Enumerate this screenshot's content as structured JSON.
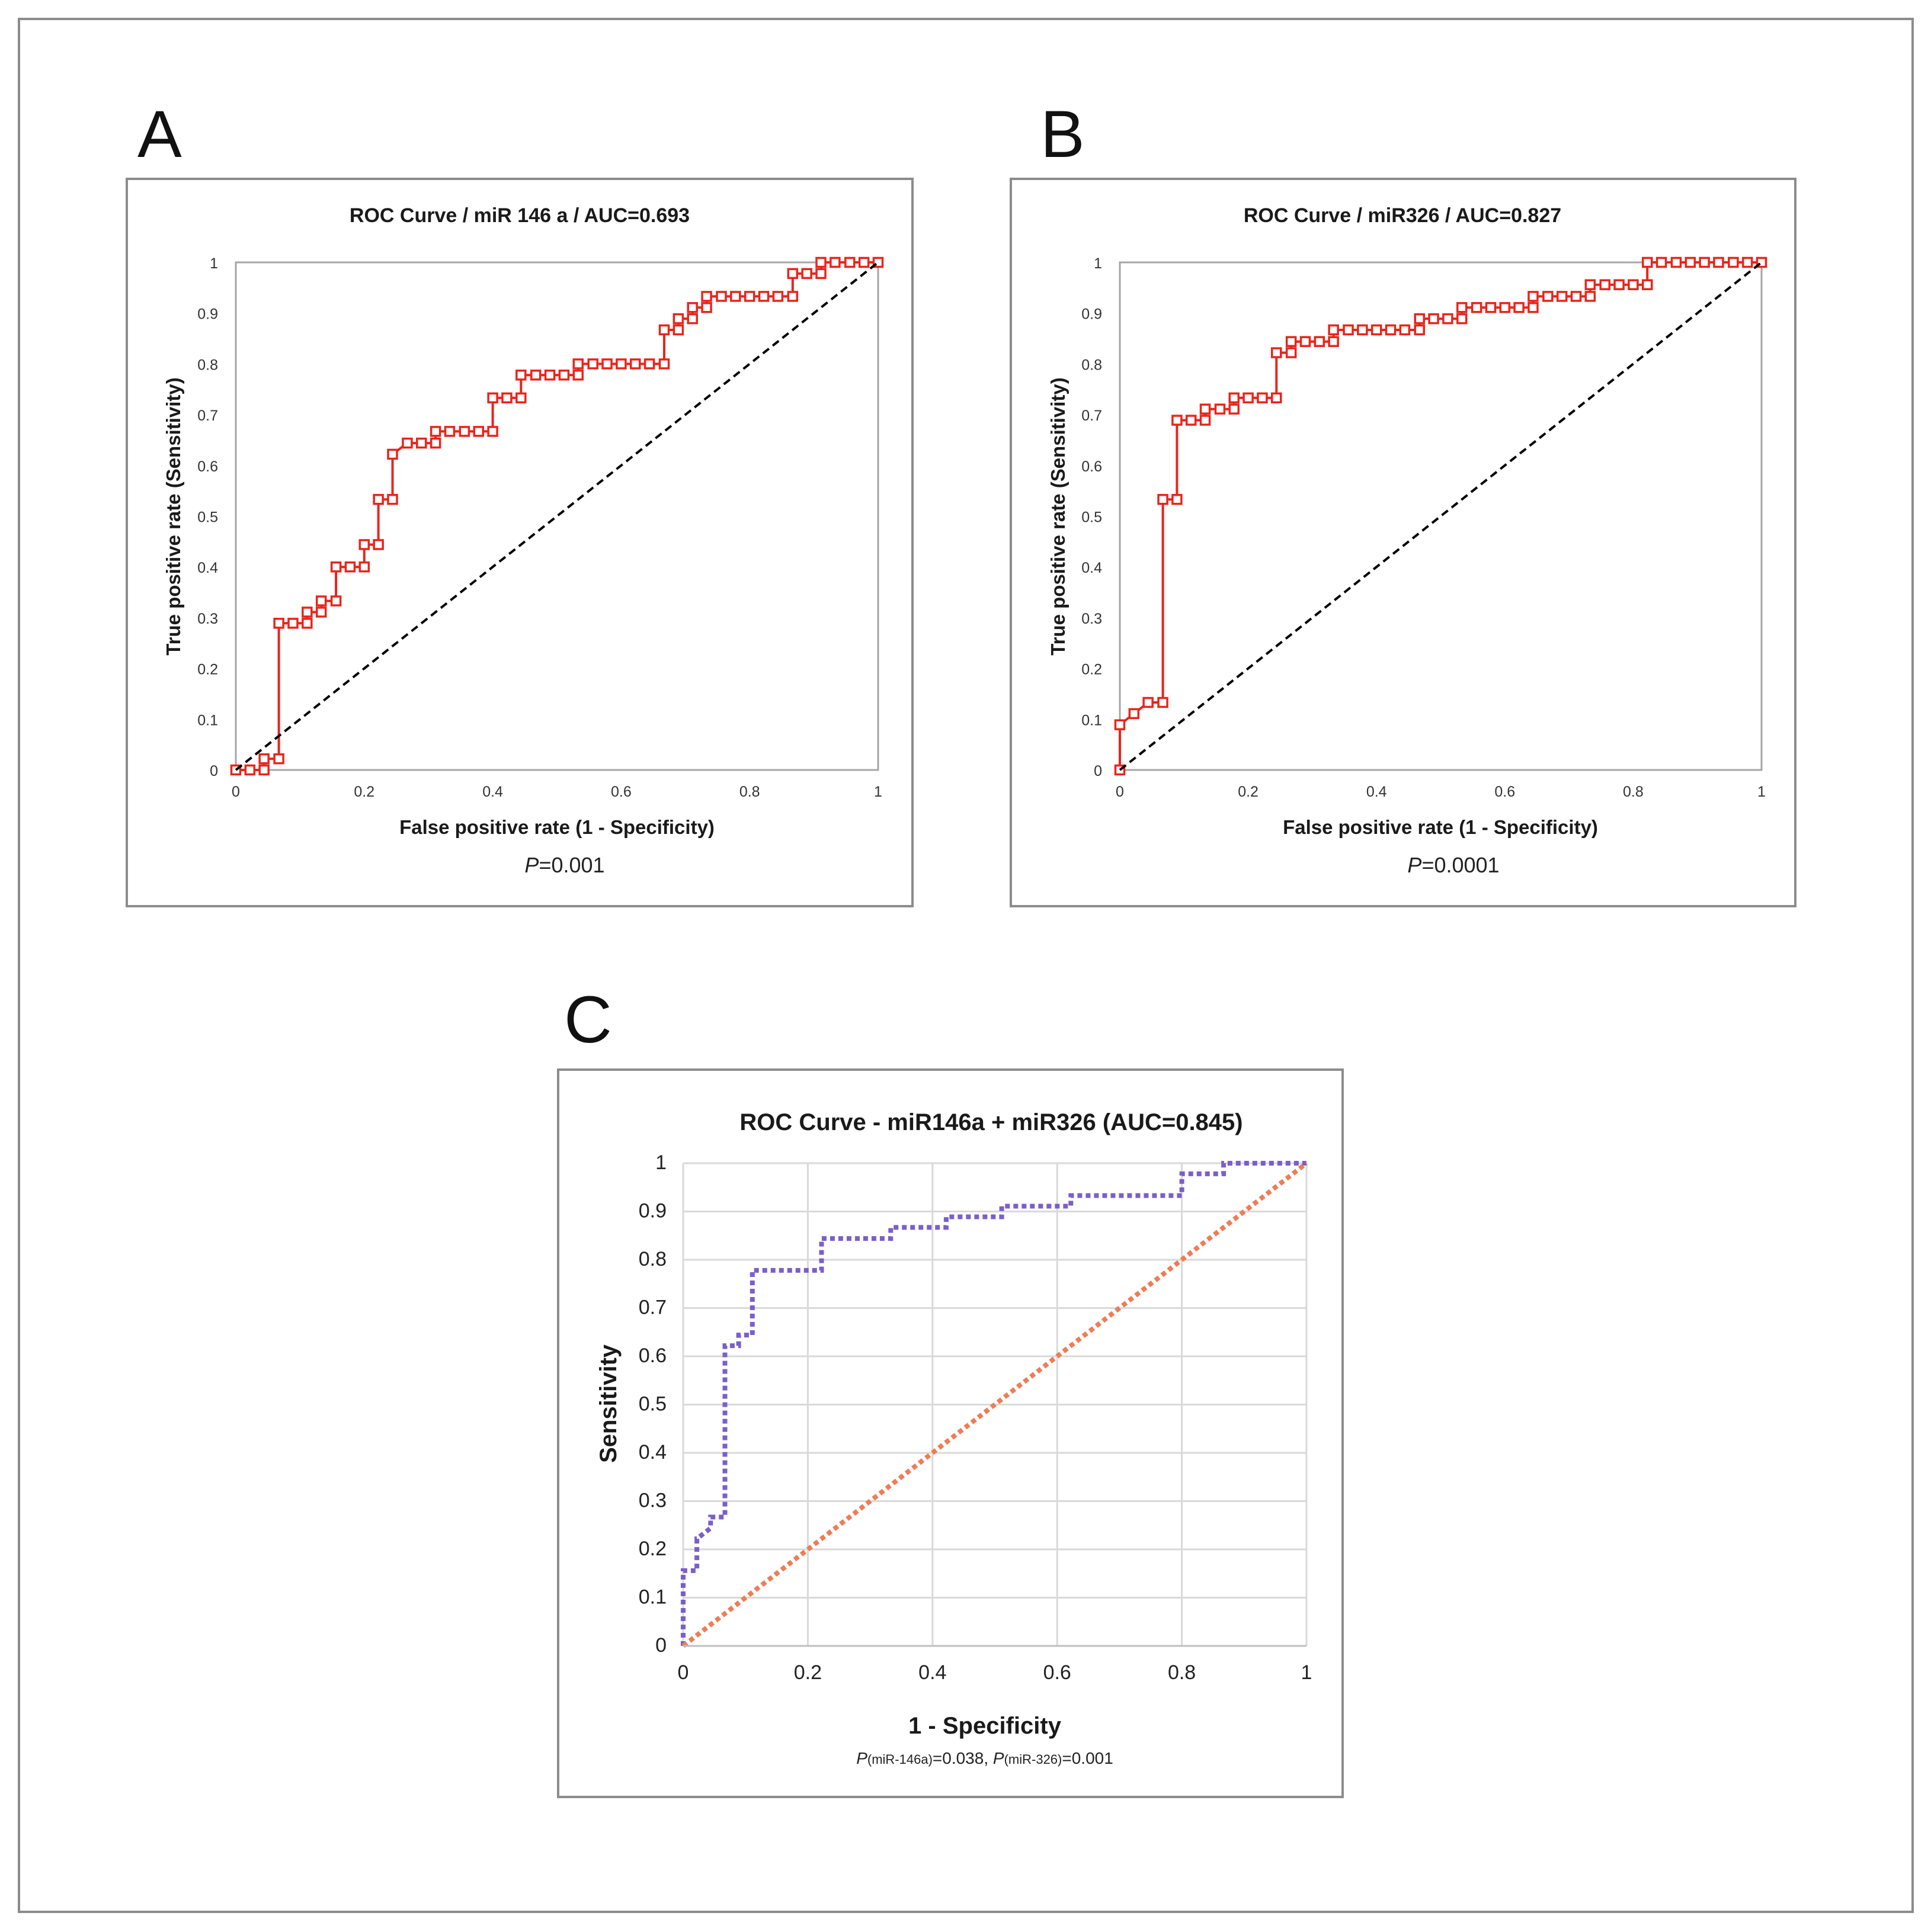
{
  "chart_data": [
    {
      "panel_label": "A",
      "type": "line",
      "title": "ROC Curve / miR 146 a / AUC=0.693",
      "xlabel": "False positive rate (1 - Specificity)",
      "ylabel": "True positive rate (Sensitivity)",
      "xlim": [
        0,
        1
      ],
      "ylim": [
        0,
        1
      ],
      "x_ticks": [
        "0",
        "0.2",
        "0.4",
        "0.6",
        "0.8",
        "1"
      ],
      "y_ticks": [
        "0",
        "0.1",
        "0.2",
        "0.3",
        "0.4",
        "0.5",
        "0.6",
        "0.7",
        "0.8",
        "0.9",
        "1"
      ],
      "grid": false,
      "note_prefix": "P",
      "note_text": "=0.001",
      "series": [
        {
          "color": "#e8251c",
          "marker": "open-square",
          "x": [
            0,
            0.022,
            0.044,
            0.044,
            0.067,
            0.067,
            0.089,
            0.111,
            0.111,
            0.133,
            0.133,
            0.156,
            0.156,
            0.178,
            0.2,
            0.2,
            0.222,
            0.222,
            0.244,
            0.244,
            0.267,
            0.289,
            0.311,
            0.311,
            0.333,
            0.356,
            0.378,
            0.4,
            0.4,
            0.422,
            0.444,
            0.444,
            0.467,
            0.489,
            0.511,
            0.533,
            0.533,
            0.556,
            0.578,
            0.6,
            0.622,
            0.644,
            0.667,
            0.667,
            0.689,
            0.689,
            0.711,
            0.711,
            0.733,
            0.733,
            0.756,
            0.778,
            0.8,
            0.822,
            0.844,
            0.867,
            0.867,
            0.889,
            0.911,
            0.911,
            0.933,
            0.956,
            0.978,
            1
          ],
          "y": [
            0,
            0,
            0,
            0.022,
            0.022,
            0.289,
            0.289,
            0.289,
            0.311,
            0.311,
            0.333,
            0.333,
            0.4,
            0.4,
            0.4,
            0.444,
            0.444,
            0.533,
            0.533,
            0.622,
            0.644,
            0.644,
            0.644,
            0.667,
            0.667,
            0.667,
            0.667,
            0.667,
            0.733,
            0.733,
            0.733,
            0.778,
            0.778,
            0.778,
            0.778,
            0.778,
            0.8,
            0.8,
            0.8,
            0.8,
            0.8,
            0.8,
            0.8,
            0.867,
            0.867,
            0.889,
            0.889,
            0.911,
            0.911,
            0.933,
            0.933,
            0.933,
            0.933,
            0.933,
            0.933,
            0.933,
            0.978,
            0.978,
            0.978,
            1,
            1,
            1,
            1,
            1
          ]
        },
        {
          "color": "#000000",
          "style": "dashed",
          "x": [
            0,
            1
          ],
          "y": [
            0,
            1
          ]
        }
      ]
    },
    {
      "panel_label": "B",
      "type": "line",
      "title": "ROC Curve / miR326 / AUC=0.827",
      "xlabel": "False positive rate (1 - Specificity)",
      "ylabel": "True positive rate (Sensitivity)",
      "xlim": [
        0,
        1
      ],
      "ylim": [
        0,
        1
      ],
      "x_ticks": [
        "0",
        "0.2",
        "0.4",
        "0.6",
        "0.8",
        "1"
      ],
      "y_ticks": [
        "0",
        "0.1",
        "0.2",
        "0.3",
        "0.4",
        "0.5",
        "0.6",
        "0.7",
        "0.8",
        "0.9",
        "1"
      ],
      "grid": false,
      "note_prefix": "P",
      "note_text": "=0.0001",
      "series": [
        {
          "color": "#e8251c",
          "marker": "open-square",
          "x": [
            0,
            0,
            0.022,
            0.044,
            0.067,
            0.067,
            0.089,
            0.089,
            0.111,
            0.133,
            0.133,
            0.156,
            0.178,
            0.178,
            0.2,
            0.222,
            0.244,
            0.244,
            0.267,
            0.267,
            0.289,
            0.311,
            0.333,
            0.333,
            0.356,
            0.378,
            0.4,
            0.422,
            0.444,
            0.467,
            0.467,
            0.489,
            0.511,
            0.533,
            0.533,
            0.556,
            0.578,
            0.6,
            0.622,
            0.644,
            0.644,
            0.667,
            0.689,
            0.711,
            0.733,
            0.733,
            0.756,
            0.778,
            0.8,
            0.822,
            0.822,
            0.844,
            0.867,
            0.889,
            0.911,
            0.933,
            0.956,
            0.978,
            1
          ],
          "y": [
            0,
            0.089,
            0.111,
            0.133,
            0.133,
            0.533,
            0.533,
            0.689,
            0.689,
            0.689,
            0.711,
            0.711,
            0.711,
            0.733,
            0.733,
            0.733,
            0.733,
            0.822,
            0.822,
            0.844,
            0.844,
            0.844,
            0.844,
            0.867,
            0.867,
            0.867,
            0.867,
            0.867,
            0.867,
            0.867,
            0.889,
            0.889,
            0.889,
            0.889,
            0.911,
            0.911,
            0.911,
            0.911,
            0.911,
            0.911,
            0.933,
            0.933,
            0.933,
            0.933,
            0.933,
            0.956,
            0.956,
            0.956,
            0.956,
            0.956,
            1,
            1,
            1,
            1,
            1,
            1,
            1,
            1,
            1
          ]
        },
        {
          "color": "#000000",
          "style": "dashed",
          "x": [
            0,
            1
          ],
          "y": [
            0,
            1
          ]
        }
      ]
    },
    {
      "panel_label": "C",
      "type": "line",
      "title": "ROC Curve - miR146a + miR326 (AUC=0.845)",
      "xlabel": "1 - Specificity",
      "ylabel": "Sensitivity",
      "xlim": [
        0,
        1
      ],
      "ylim": [
        0,
        1
      ],
      "x_ticks": [
        "0",
        "0.2",
        "0.4",
        "0.6",
        "0.8",
        "1"
      ],
      "y_ticks": [
        "0",
        "0.1",
        "0.2",
        "0.3",
        "0.4",
        "0.5",
        "0.6",
        "0.7",
        "0.8",
        "0.9",
        "1"
      ],
      "grid": true,
      "note_parts": [
        {
          "text": "P",
          "style": "italic"
        },
        {
          "text": "(miR-146a)",
          "style": "sub"
        },
        {
          "text": "=0.038, ",
          "style": "normal"
        },
        {
          "text": "P",
          "style": "italic"
        },
        {
          "text": "(miR-326)",
          "style": "sub"
        },
        {
          "text": "=0.001",
          "style": "normal"
        }
      ],
      "series": [
        {
          "color": "#7b5fc9",
          "style": "dotted",
          "x": [
            0,
            0,
            0.022,
            0.022,
            0.044,
            0.044,
            0.067,
            0.067,
            0.089,
            0.089,
            0.111,
            0.111,
            0.222,
            0.222,
            0.333,
            0.333,
            0.422,
            0.422,
            0.511,
            0.511,
            0.622,
            0.622,
            0.8,
            0.8,
            0.867,
            0.867,
            1
          ],
          "y": [
            0,
            0.156,
            0.156,
            0.222,
            0.244,
            0.267,
            0.267,
            0.622,
            0.622,
            0.644,
            0.644,
            0.778,
            0.778,
            0.844,
            0.844,
            0.867,
            0.867,
            0.889,
            0.889,
            0.911,
            0.911,
            0.933,
            0.933,
            0.978,
            0.978,
            1,
            1
          ]
        },
        {
          "color": "#ed7d55",
          "style": "dotted",
          "x": [
            0,
            1
          ],
          "y": [
            0,
            1
          ]
        }
      ]
    }
  ]
}
